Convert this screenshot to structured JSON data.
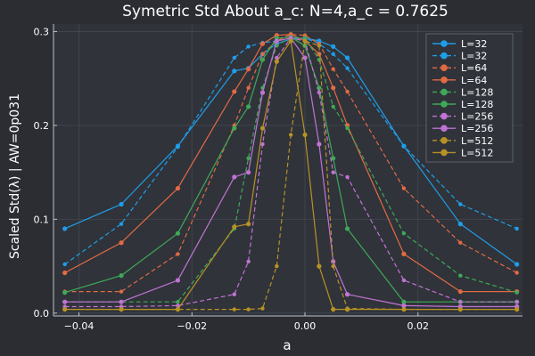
{
  "chart_data": {
    "type": "line",
    "title": "Symetric Std About a_c: N=4,a_c = 0.7625",
    "xlabel": "a",
    "ylabel": "Scaled Std(λ) | AW=0p031",
    "xlim": [
      -0.0445,
      0.0385
    ],
    "ylim": [
      -0.003,
      0.308
    ],
    "x_ticks": [
      -0.04,
      -0.02,
      0.0,
      0.02
    ],
    "x_tick_labels": [
      "−0.04",
      "−0.02",
      "0.00",
      "0.02"
    ],
    "y_ticks": [
      0.0,
      0.1,
      0.2,
      0.3
    ],
    "y_tick_labels": [
      "0.0",
      "0.1",
      "0.2",
      "0.3"
    ],
    "grid": true,
    "legend_position": "top-right",
    "series": [
      {
        "name": "L=32",
        "color": "#1f9ee8",
        "dash": false,
        "marker_size": 2.6,
        "x": [
          -0.0425,
          -0.0325,
          -0.0225,
          -0.0125,
          -0.01,
          -0.0075,
          -0.005,
          -0.0025,
          0.0,
          0.0025,
          0.005,
          0.0075,
          0.0175,
          0.0275,
          0.0375
        ],
        "y": [
          0.09,
          0.116,
          0.178,
          0.258,
          0.261,
          0.276,
          0.287,
          0.292,
          0.293,
          0.29,
          0.284,
          0.272,
          0.178,
          0.095,
          0.052
        ]
      },
      {
        "name": "L=32",
        "color": "#1f9ee8",
        "dash": true,
        "marker_size": 2.2,
        "x": [
          -0.0425,
          -0.0325,
          -0.0225,
          -0.0125,
          -0.01,
          -0.0075,
          -0.005,
          -0.0025,
          0.0,
          0.0025,
          0.005,
          0.0075,
          0.0175,
          0.0275,
          0.0375
        ],
        "y": [
          0.052,
          0.095,
          0.177,
          0.272,
          0.284,
          0.288,
          0.29,
          0.293,
          0.293,
          0.287,
          0.276,
          0.261,
          0.178,
          0.116,
          0.09
        ]
      },
      {
        "name": "L=64",
        "color": "#e26a43",
        "dash": true,
        "marker_size": 2.2,
        "x": [
          -0.0425,
          -0.0325,
          -0.0225,
          -0.0125,
          -0.01,
          -0.0075,
          -0.005,
          -0.0025,
          0.0,
          0.0025,
          0.005,
          0.0075,
          0.0175,
          0.0275,
          0.0375
        ],
        "y": [
          0.023,
          0.023,
          0.063,
          0.2,
          0.24,
          0.276,
          0.29,
          0.297,
          0.296,
          0.287,
          0.26,
          0.236,
          0.133,
          0.075,
          0.043
        ]
      },
      {
        "name": "L=64",
        "color": "#e26a43",
        "dash": false,
        "marker_size": 2.6,
        "x": [
          -0.0425,
          -0.0325,
          -0.0225,
          -0.0125,
          -0.01,
          -0.0075,
          -0.005,
          -0.0025,
          0.0,
          0.0025,
          0.005,
          0.0075,
          0.0175,
          0.0275,
          0.0375
        ],
        "y": [
          0.043,
          0.075,
          0.133,
          0.236,
          0.26,
          0.287,
          0.296,
          0.297,
          0.29,
          0.276,
          0.24,
          0.2,
          0.063,
          0.023,
          0.023
        ]
      },
      {
        "name": "L=128",
        "color": "#3ea957",
        "dash": true,
        "marker_size": 2.2,
        "x": [
          -0.0425,
          -0.0325,
          -0.0225,
          -0.0125,
          -0.01,
          -0.0075,
          -0.005,
          -0.0025,
          0.0,
          0.0025,
          0.005,
          0.0075,
          0.0175,
          0.0275,
          0.0375
        ],
        "y": [
          0.012,
          0.012,
          0.012,
          0.09,
          0.165,
          0.24,
          0.285,
          0.294,
          0.293,
          0.27,
          0.22,
          0.197,
          0.085,
          0.04,
          0.022
        ]
      },
      {
        "name": "L=128",
        "color": "#3ea957",
        "dash": false,
        "marker_size": 2.6,
        "x": [
          -0.0425,
          -0.0325,
          -0.0225,
          -0.0125,
          -0.01,
          -0.0075,
          -0.005,
          -0.0025,
          0.0,
          0.0025,
          0.005,
          0.0075,
          0.0175,
          0.0275,
          0.0375
        ],
        "y": [
          0.022,
          0.04,
          0.085,
          0.197,
          0.22,
          0.27,
          0.293,
          0.294,
          0.285,
          0.24,
          0.165,
          0.09,
          0.012,
          0.012,
          0.012
        ]
      },
      {
        "name": "L=256",
        "color": "#c173d5",
        "dash": true,
        "marker_size": 2.2,
        "x": [
          -0.0425,
          -0.0325,
          -0.0225,
          -0.0125,
          -0.01,
          -0.0075,
          -0.005,
          -0.0025,
          0.0,
          0.0025,
          0.005,
          0.0075,
          0.0175,
          0.0275,
          0.0375
        ],
        "y": [
          0.007,
          0.007,
          0.008,
          0.02,
          0.055,
          0.18,
          0.272,
          0.293,
          0.29,
          0.235,
          0.15,
          0.145,
          0.035,
          0.012,
          0.012
        ]
      },
      {
        "name": "L=256",
        "color": "#c173d5",
        "dash": false,
        "marker_size": 2.6,
        "x": [
          -0.0425,
          -0.0325,
          -0.0225,
          -0.0125,
          -0.01,
          -0.0075,
          -0.005,
          -0.0025,
          0.0,
          0.0025,
          0.005,
          0.0075,
          0.0175,
          0.0275,
          0.0375
        ],
        "y": [
          0.012,
          0.012,
          0.035,
          0.145,
          0.15,
          0.235,
          0.29,
          0.293,
          0.272,
          0.18,
          0.055,
          0.02,
          0.008,
          0.007,
          0.007
        ]
      },
      {
        "name": "L=512",
        "color": "#b89224",
        "dash": true,
        "marker_size": 2.2,
        "x": [
          -0.0425,
          -0.0325,
          -0.0225,
          -0.0125,
          -0.01,
          -0.0075,
          -0.005,
          -0.0025,
          0.0,
          0.0025,
          0.005,
          0.0075,
          0.0175,
          0.0275,
          0.0375
        ],
        "y": [
          0.004,
          0.004,
          0.004,
          0.004,
          0.004,
          0.005,
          0.05,
          0.19,
          0.29,
          0.285,
          0.05,
          0.005,
          0.004,
          0.004,
          0.004
        ]
      },
      {
        "name": "L=512",
        "color": "#b89224",
        "dash": false,
        "marker_size": 2.6,
        "x": [
          -0.0425,
          -0.0325,
          -0.0225,
          -0.0125,
          -0.01,
          -0.0075,
          -0.005,
          -0.0025,
          0.0,
          0.0025,
          0.005,
          0.0075,
          0.0175,
          0.0275,
          0.0375
        ],
        "y": [
          0.004,
          0.004,
          0.004,
          0.092,
          0.095,
          0.197,
          0.268,
          0.29,
          0.19,
          0.05,
          0.004,
          0.004,
          0.004,
          0.004,
          0.004
        ]
      }
    ]
  }
}
